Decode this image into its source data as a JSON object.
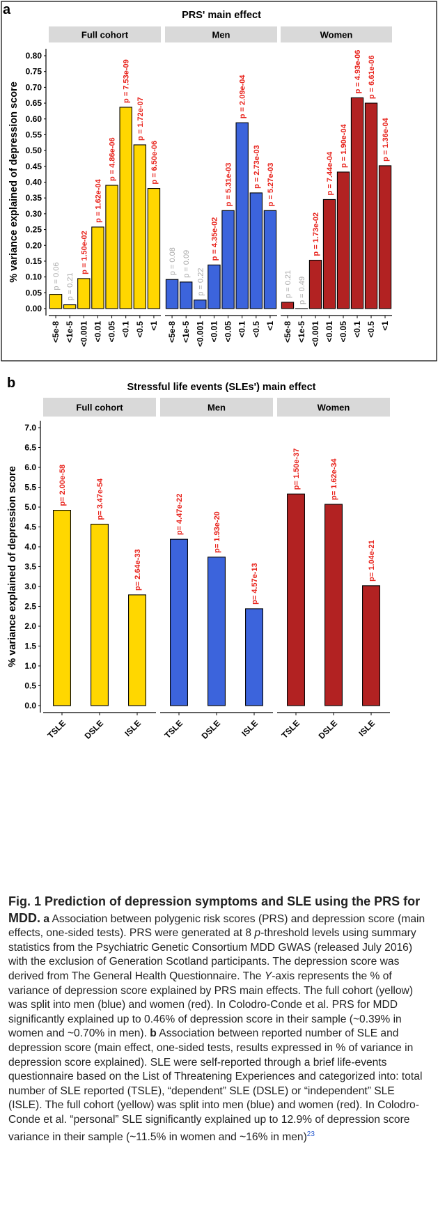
{
  "chart_data": [
    {
      "type": "bar",
      "panel_label": "a",
      "title": "PRS' main effect",
      "ylabel": "% variance explained of depression score",
      "ylim": [
        0,
        0.8
      ],
      "yticks": [
        "0.00",
        "0.05",
        "0.10",
        "0.15",
        "0.20",
        "0.25",
        "0.30",
        "0.35",
        "0.40",
        "0.45",
        "0.50",
        "0.55",
        "0.60",
        "0.65",
        "0.70",
        "0.75",
        "0.80"
      ],
      "categories": [
        "<5e-8",
        "<1e-5",
        "<0.001",
        "<0.01",
        "<0.05",
        "<0.1",
        "<0.5",
        "<1"
      ],
      "facets": [
        {
          "name": "Full cohort",
          "color": "#FFD700",
          "values": [
            0.045,
            0.012,
            0.095,
            0.258,
            0.39,
            0.637,
            0.518,
            0.38
          ],
          "labels": [
            "p = 0.06",
            "p = 0.21",
            "p = 1.50e-02",
            "p = 1.62e-04",
            "p = 4.86e-06",
            "p = 7.53e-09",
            "p = 1.72e-07",
            "p = 6.50e-06"
          ],
          "significant": [
            false,
            false,
            true,
            true,
            true,
            true,
            true,
            true
          ]
        },
        {
          "name": "Men",
          "color": "#3C64DC",
          "values": [
            0.092,
            0.084,
            0.027,
            0.138,
            0.31,
            0.588,
            0.366,
            0.31
          ],
          "labels": [
            "p = 0.08",
            "p = 0.09",
            "p = 0.22",
            "p = 4.35e-02",
            "p = 5.31e-03",
            "p = 2.09e-04",
            "p = 2.73e-03",
            "p = 5.27e-03"
          ],
          "significant": [
            false,
            false,
            false,
            true,
            true,
            true,
            true,
            true
          ]
        },
        {
          "name": "Women",
          "color": "#B22222",
          "values": [
            0.02,
            0.0,
            0.153,
            0.345,
            0.432,
            0.667,
            0.65,
            0.452
          ],
          "labels": [
            "p = 0.21",
            "p = 0.49",
            "p = 1.73e-02",
            "p = 7.44e-04",
            "p = 1.90e-04",
            "p = 4.93e-06",
            "p = 6.61e-06",
            "p = 1.36e-04"
          ],
          "significant": [
            false,
            false,
            true,
            true,
            true,
            true,
            true,
            true
          ]
        }
      ]
    },
    {
      "type": "bar",
      "panel_label": "b",
      "title": "Stressful life events (SLEs') main effect",
      "ylabel": "% variance explained of depression score",
      "ylim": [
        0,
        7.0
      ],
      "yticks": [
        "0.0",
        "0.5",
        "1.0",
        "1.5",
        "2.0",
        "2.5",
        "3.0",
        "3.5",
        "4.0",
        "4.5",
        "5.0",
        "5.5",
        "6.0",
        "6.5",
        "7.0"
      ],
      "categories": [
        "TSLE",
        "DSLE",
        "ISLE"
      ],
      "facets": [
        {
          "name": "Full cohort",
          "color": "#FFD700",
          "values": [
            4.92,
            4.57,
            2.79
          ],
          "labels": [
            "p= 2.00e-58",
            "p= 3.47e-54",
            "p= 2.64e-33"
          ],
          "significant": [
            true,
            true,
            true
          ]
        },
        {
          "name": "Men",
          "color": "#3C64DC",
          "values": [
            4.19,
            3.74,
            2.44
          ],
          "labels": [
            "p= 4.47e-22",
            "p= 1.93e-20",
            "p= 4.57e-13"
          ],
          "significant": [
            true,
            true,
            true
          ]
        },
        {
          "name": "Women",
          "color": "#B22222",
          "values": [
            5.33,
            5.07,
            3.02
          ],
          "labels": [
            "p= 1.50e-37",
            "p= 1.62e-34",
            "p= 1.04e-21"
          ],
          "significant": [
            true,
            true,
            true
          ]
        }
      ]
    }
  ],
  "colors": {
    "significant_label": "#E8221B",
    "nonsignificant_label": "#AAAAAA",
    "strip": "#D9D9D9"
  },
  "caption": {
    "title": "Fig. 1 Prediction of depression symptoms and SLE using the PRS for MDD.",
    "part_a_label": "a",
    "part_a_1": "Association between polygenic risk scores (PRS) and depression score (main effects, one-sided tests). PRS were generated at 8 ",
    "part_a_italic_p": "p",
    "part_a_2": "-threshold levels using summary statistics from the Psychiatric Genetic Consortium MDD GWAS (released July 2016) with the exclusion of Generation Scotland participants. The depression score was derived from The General Health Questionnaire. The ",
    "part_a_italic_y": "Y",
    "part_a_3": "-axis represents the % of variance of depression score explained by PRS main effects. The full cohort (yellow) was split into men (blue) and women (red). In Colodro-Conde et al. PRS for MDD significantly explained up to 0.46% of depression score in their sample (~0.39% in women and ~0.70% in men).",
    "part_b_label": "b",
    "part_b_1": "Association between reported number of SLE and depression score (main effect, one-sided tests, results expressed in % of variance in depression score explained). SLE were self-reported through a brief life-events questionnaire based on the List of Threatening Experiences and categorized into: total number of SLE reported (TSLE), “dependent” SLE (DSLE) or “independent” SLE (ISLE). The full cohort (yellow) was split into men (blue) and women (red). In Colodro-Conde et al. “personal” SLE significantly explained up to 12.9% of depression score variance in their sample (~11.5% in women and ~16% in men)",
    "part_b_ref": "23"
  }
}
